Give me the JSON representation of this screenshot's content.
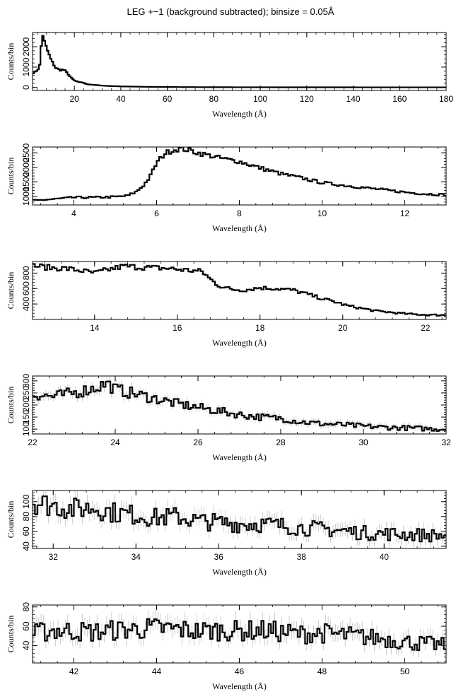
{
  "title": "LEG +−1 (background subtracted); binsize = 0.05Å",
  "chart_data": [
    {
      "type": "line",
      "xlabel": "Wavelength (Å)",
      "ylabel": "Counts/bin",
      "xlim": [
        2,
        180
      ],
      "ylim": [
        -150,
        2700
      ],
      "xticks": [
        20,
        40,
        60,
        80,
        100,
        120,
        140,
        160,
        180
      ],
      "xtick_labels": [
        "20",
        "40",
        "60",
        "80",
        "100",
        "120",
        "140",
        "160",
        "180"
      ],
      "yticks": [
        0,
        1000,
        2000
      ],
      "ytick_labels": [
        "0",
        "1000",
        "2000"
      ],
      "series": [
        {
          "x": [
            2,
            3,
            4,
            5,
            5.5,
            6,
            6.3,
            6.6,
            7,
            7.5,
            8,
            9,
            10,
            11,
            12,
            13,
            14,
            15,
            16,
            17,
            18,
            19,
            20,
            21,
            22,
            23,
            24,
            25,
            26,
            28,
            30,
            32,
            35,
            40,
            45,
            50,
            55,
            60,
            70,
            80,
            100,
            120,
            140,
            160,
            180
          ],
          "y": [
            700,
            750,
            850,
            1000,
            1600,
            2400,
            2600,
            2550,
            2300,
            2100,
            1950,
            1650,
            1350,
            1150,
            950,
            900,
            850,
            880,
            820,
            700,
            560,
            430,
            340,
            300,
            250,
            260,
            220,
            180,
            150,
            130,
            110,
            90,
            70,
            50,
            40,
            30,
            25,
            20,
            15,
            10,
            8,
            6,
            5,
            4,
            4
          ]
        }
      ]
    },
    {
      "type": "line",
      "xlabel": "Wavelength (Å)",
      "ylabel": "Counts/bin",
      "xlim": [
        3,
        13
      ],
      "ylim": [
        700,
        2700
      ],
      "xticks": [
        4,
        6,
        8,
        10,
        12
      ],
      "xtick_labels": [
        "4",
        "6",
        "8",
        "10",
        "12"
      ],
      "yticks": [
        1000,
        1500,
        2000,
        2500
      ],
      "ytick_labels": [
        "1000",
        "1500",
        "2000",
        "2500"
      ],
      "series": [
        {
          "x": [
            3,
            3.5,
            4,
            4.5,
            5,
            5.3,
            5.5,
            5.7,
            5.85,
            6,
            6.2,
            6.4,
            6.6,
            6.8,
            7,
            7.3,
            7.6,
            8,
            8.5,
            9,
            9.5,
            10,
            10.5,
            11,
            11.5,
            12,
            12.5,
            13
          ],
          "y": [
            850,
            900,
            960,
            960,
            980,
            1020,
            1150,
            1400,
            1700,
            2150,
            2480,
            2600,
            2650,
            2580,
            2500,
            2400,
            2300,
            2200,
            1980,
            1780,
            1630,
            1470,
            1380,
            1300,
            1220,
            1140,
            1080,
            1050
          ]
        }
      ]
    },
    {
      "type": "line",
      "xlabel": "Wavelength (Å)",
      "ylabel": "Counts/bin",
      "xlim": [
        12.5,
        22.5
      ],
      "ylim": [
        200,
        950
      ],
      "xticks": [
        14,
        16,
        18,
        20,
        22
      ],
      "xtick_labels": [
        "14",
        "16",
        "18",
        "20",
        "22"
      ],
      "yticks": [
        400,
        600,
        800
      ],
      "ytick_labels": [
        "400",
        "600",
        "800"
      ],
      "series": [
        {
          "x": [
            12.5,
            12.9,
            13.3,
            13.7,
            14.0,
            14.3,
            14.7,
            15.0,
            15.4,
            15.8,
            16.2,
            16.6,
            16.8,
            17.0,
            17.3,
            17.6,
            18.0,
            18.4,
            18.8,
            19.2,
            19.5,
            19.8,
            20.1,
            20.4,
            20.8,
            21.2,
            21.6,
            22.0,
            22.5
          ],
          "y": [
            900,
            870,
            860,
            830,
            800,
            840,
            890,
            880,
            870,
            860,
            840,
            820,
            720,
            640,
            590,
            580,
            610,
            600,
            580,
            520,
            470,
            430,
            380,
            350,
            310,
            290,
            270,
            260,
            255
          ]
        }
      ]
    },
    {
      "type": "line",
      "xlabel": "Wavelength (Å)",
      "ylabel": "Counts/bin",
      "xlim": [
        22,
        32
      ],
      "ylim": [
        80,
        320
      ],
      "xticks": [
        22,
        24,
        26,
        28,
        30,
        32
      ],
      "xtick_labels": [
        "22",
        "24",
        "26",
        "28",
        "30",
        "32"
      ],
      "yticks": [
        100,
        150,
        200,
        250,
        300
      ],
      "ytick_labels": [
        "100",
        "150",
        "200",
        "250",
        "300"
      ],
      "series": [
        {
          "x": [
            22,
            22.5,
            23,
            23.5,
            23.8,
            24,
            24.5,
            25,
            25.5,
            26,
            26.5,
            27,
            27.5,
            28,
            28.5,
            29,
            29.5,
            30,
            30.5,
            31,
            31.5,
            32
          ],
          "y": [
            245,
            235,
            250,
            270,
            290,
            265,
            245,
            225,
            205,
            190,
            175,
            160,
            150,
            145,
            130,
            122,
            118,
            112,
            108,
            105,
            102,
            100
          ]
        }
      ]
    },
    {
      "type": "line",
      "xlabel": "Wavelength (Å)",
      "ylabel": "Counts/bin",
      "xlim": [
        31.5,
        41.5
      ],
      "ylim": [
        37,
        115
      ],
      "xticks": [
        32,
        34,
        36,
        38,
        40
      ],
      "xtick_labels": [
        "32",
        "34",
        "36",
        "38",
        "40"
      ],
      "yticks": [
        40,
        60,
        80,
        100
      ],
      "ytick_labels": [
        "40",
        "60",
        "80",
        "100"
      ],
      "series": [
        {
          "x": [
            31.5,
            32,
            32.5,
            33,
            33.5,
            34,
            34.5,
            35,
            35.5,
            36,
            36.5,
            37,
            37.5,
            38,
            38.5,
            39,
            39.5,
            40,
            40.5,
            41,
            41.5
          ],
          "y": [
            100,
            95,
            90,
            92,
            85,
            82,
            78,
            80,
            74,
            72,
            70,
            70,
            68,
            65,
            63,
            61,
            58,
            57,
            56,
            55,
            54
          ]
        }
      ]
    },
    {
      "type": "line",
      "xlabel": "Wavelength (Å)",
      "ylabel": "Counts/bin",
      "xlim": [
        41,
        51
      ],
      "ylim": [
        22,
        82
      ],
      "xticks": [
        42,
        44,
        46,
        48,
        50
      ],
      "xtick_labels": [
        "42",
        "44",
        "46",
        "48",
        "50"
      ],
      "yticks": [
        40,
        60,
        80
      ],
      "ytick_labels": [
        "40",
        "60",
        "80"
      ],
      "series": [
        {
          "x": [
            41,
            41.5,
            42,
            42.5,
            43,
            43.5,
            44,
            44.5,
            45,
            45.5,
            46,
            46.5,
            47,
            47.5,
            48,
            48.5,
            49,
            49.5,
            50,
            50.5,
            51
          ],
          "y": [
            52,
            56,
            55,
            54,
            56,
            57,
            58,
            57,
            55,
            56,
            55,
            56,
            54,
            52,
            53,
            51,
            49,
            47,
            44,
            42,
            40
          ]
        }
      ]
    }
  ]
}
